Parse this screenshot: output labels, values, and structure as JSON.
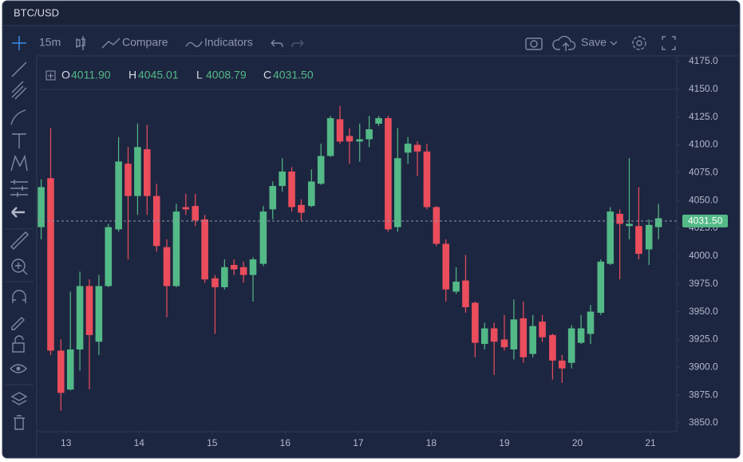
{
  "header": {
    "symbol": "BTC/USD"
  },
  "toolbar": {
    "interval": "15m",
    "compare": "Compare",
    "indicators": "Indicators",
    "save": "Save"
  },
  "chart_data": {
    "type": "candlestick",
    "ohlc_legend": [
      {
        "label": "O",
        "value": "4011.90"
      },
      {
        "label": "H",
        "value": "4045.01"
      },
      {
        "label": "L",
        "value": "4008.79"
      },
      {
        "label": "C",
        "value": "4031.50"
      }
    ],
    "x": [
      12.66,
      12.79,
      12.93,
      13.06,
      13.19,
      13.32,
      13.45,
      13.58,
      13.72,
      13.85,
      13.98,
      14.11,
      14.24,
      14.38,
      14.51,
      14.64,
      14.77,
      14.9,
      15.04,
      15.17,
      15.3,
      15.43,
      15.56,
      15.7,
      15.83,
      15.96,
      16.09,
      16.22,
      16.36,
      16.49,
      16.62,
      16.75,
      16.88,
      17.02,
      17.15,
      17.28,
      17.41,
      17.54,
      17.68,
      17.81,
      17.94,
      18.07,
      18.2,
      18.34,
      18.47,
      18.6,
      18.73,
      18.86,
      19.0,
      19.13,
      19.26,
      19.39,
      19.52,
      19.66,
      19.79,
      19.92,
      20.05,
      20.18,
      20.32,
      20.45,
      20.58,
      20.71,
      20.84,
      20.98,
      21.11
    ],
    "open": [
      4026,
      4070,
      3915,
      3880,
      3916,
      3973,
      3923,
      3973,
      4024,
      4083,
      4054,
      4096,
      4054,
      4008,
      3973,
      4044,
      4045,
      4033,
      3980,
      3972,
      3992,
      3990,
      3983,
      3993,
      4042,
      4063,
      4076,
      4046,
      4045,
      4065,
      4090,
      4123,
      4108,
      4103,
      4105,
      4119,
      4124,
      4026,
      4093,
      4100,
      4094,
      4044,
      4011,
      3968,
      3978,
      3958,
      3921,
      3935,
      3925,
      3916,
      3944,
      3912,
      3941,
      3929,
      3906,
      3904,
      3922,
      3930,
      3949,
      3993,
      4038,
      4027,
      4027,
      4006,
      4026
    ],
    "high": [
      4069,
      4115,
      3925,
      3968,
      3986,
      3979,
      3983,
      4029,
      4107,
      4098,
      4119,
      4118,
      4065,
      4015,
      4047,
      4056,
      4056,
      4037,
      3983,
      3997,
      3997,
      3995,
      3999,
      4045,
      4067,
      4088,
      4080,
      4051,
      4078,
      4101,
      4126,
      4135,
      4115,
      4119,
      4126,
      4126,
      4126,
      4115,
      4107,
      4103,
      4101,
      4045,
      4015,
      3990,
      4001,
      3959,
      3940,
      3940,
      3947,
      3961,
      3959,
      3947,
      3947,
      3930,
      3911,
      3938,
      3947,
      3956,
      3997,
      4044,
      4042,
      4088,
      4062,
      4033,
      4047
    ],
    "low": [
      4015,
      3911,
      3861,
      3879,
      3897,
      3880,
      3911,
      3972,
      4022,
      3997,
      4037,
      4037,
      4004,
      3945,
      3972,
      4037,
      4027,
      3976,
      3930,
      3970,
      3983,
      3976,
      3959,
      3991,
      4033,
      4058,
      4040,
      4032,
      4044,
      4064,
      4089,
      4101,
      4083,
      4085,
      4098,
      4117,
      4022,
      4022,
      4083,
      4072,
      4042,
      4009,
      3959,
      3966,
      3949,
      3909,
      3916,
      3893,
      3915,
      3907,
      3904,
      3909,
      3923,
      3889,
      3886,
      3899,
      3921,
      3921,
      3947,
      3992,
      3979,
      4015,
      3997,
      3992,
      4015
    ],
    "close": [
      4062,
      3915,
      3877,
      3916,
      3973,
      3929,
      3973,
      4026,
      4085,
      4054,
      4098,
      4054,
      4009,
      3973,
      4040,
      4042,
      4032,
      3979,
      3972,
      3990,
      3988,
      3983,
      3997,
      4040,
      4063,
      4076,
      4044,
      4039,
      4067,
      4090,
      4124,
      4103,
      4103,
      4105,
      4114,
      4124,
      4024,
      4088,
      4101,
      4094,
      4044,
      4011,
      3970,
      3977,
      3954,
      3922,
      3935,
      3923,
      3918,
      3943,
      3909,
      3937,
      3927,
      3906,
      3899,
      3935,
      3935,
      3950,
      3995,
      4040,
      4029,
      4029,
      4002,
      4028,
      4034
    ],
    "up_color": "#53b987",
    "down_color": "#eb4d5c",
    "xlim": [
      12.61,
      21.36
    ],
    "xticks": [
      13,
      14,
      15,
      16,
      17,
      18,
      19,
      20,
      21
    ],
    "ylim": [
      3842.8,
      4180
    ],
    "yticks": [
      {
        "value": 3850,
        "label": "3850.0"
      },
      {
        "value": 3875,
        "label": "3875.0"
      },
      {
        "value": 3900,
        "label": "3900.0"
      },
      {
        "value": 3925,
        "label": "3925.0"
      },
      {
        "value": 3950,
        "label": "3950.0"
      },
      {
        "value": 3975,
        "label": "3975.0"
      },
      {
        "value": 4000,
        "label": "4000.0"
      },
      {
        "value": 4025,
        "label": "4025.0"
      },
      {
        "value": 4050,
        "label": "4050.0"
      },
      {
        "value": 4075,
        "label": "4075.0"
      },
      {
        "value": 4100,
        "label": "4100.0"
      },
      {
        "value": 4125,
        "label": "4125.0"
      },
      {
        "value": 4150,
        "label": "4150.0"
      },
      {
        "value": 4175,
        "label": "4175.0"
      }
    ],
    "last_price": {
      "value": 4031.5,
      "label": "4031.50"
    },
    "grid": false
  }
}
